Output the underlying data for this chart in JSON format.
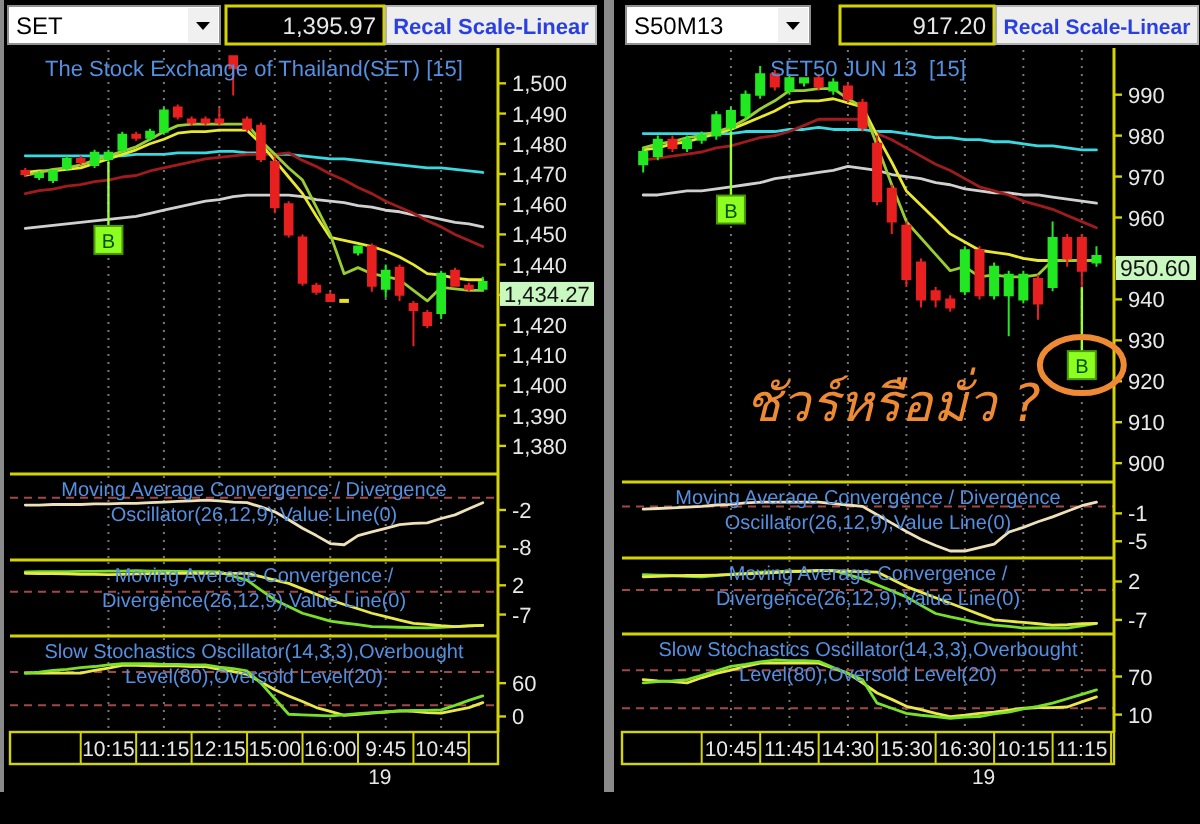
{
  "chart_data": [
    {
      "type": "candlestick",
      "title": "The Stock Exchange of Thailand(SET) [15]",
      "categories": [
        null,
        null,
        null,
        null,
        null,
        null,
        "10:15",
        null,
        null,
        null,
        "11:15",
        null,
        null,
        null,
        "12:15",
        null,
        null,
        null,
        "15:00",
        null,
        null,
        null,
        "16:00",
        null,
        null,
        null,
        "9:45",
        null,
        null,
        null,
        "10:45",
        null,
        null,
        null
      ],
      "ohlc": [
        [
          1471,
          1472,
          1469,
          1470
        ],
        [
          1469,
          1471,
          1468,
          1470
        ],
        [
          1468,
          1471,
          1467,
          1471
        ],
        [
          1472,
          1476,
          1471,
          1475
        ],
        [
          1475,
          1476,
          1473,
          1474
        ],
        [
          1473,
          1478,
          1472,
          1477
        ],
        [
          1475,
          1478,
          1474,
          1477
        ],
        [
          1478,
          1484,
          1477,
          1483
        ],
        [
          1483,
          1484,
          1481,
          1482
        ],
        [
          1482,
          1485,
          1481,
          1484
        ],
        [
          1484,
          1492,
          1483,
          1491
        ],
        [
          1492,
          1493,
          1488,
          1489
        ],
        [
          1488,
          1489,
          1486,
          1487
        ],
        [
          1488,
          1489,
          1486,
          1487
        ],
        [
          1488,
          1492,
          1486,
          1487
        ],
        [
          1509,
          1509,
          1496,
          1505
        ],
        [
          1488,
          1489,
          1484,
          1485
        ],
        [
          1486,
          1487,
          1474,
          1475
        ],
        [
          1474,
          1476,
          1457,
          1459
        ],
        [
          1460,
          1461,
          1449,
          1450
        ],
        [
          1449,
          1450,
          1433,
          1434
        ],
        [
          1433,
          1434,
          1430,
          1431
        ],
        [
          1430,
          1431,
          1428,
          1428
        ],
        [
          1428,
          1428,
          1428,
          1428
        ],
        [
          1444,
          1446,
          1443,
          1446
        ],
        [
          1446,
          1447,
          1431,
          1433
        ],
        [
          1432,
          1440,
          1429,
          1438
        ],
        [
          1439,
          1440,
          1428,
          1430
        ],
        [
          1427,
          1428,
          1413,
          1425
        ],
        [
          1424,
          1425,
          1419,
          1420
        ],
        [
          1424,
          1438,
          1422,
          1437
        ],
        [
          1438,
          1439,
          1433,
          1433
        ],
        [
          1433,
          1434,
          1431,
          1432
        ],
        [
          1432,
          1436,
          1431,
          1434.27
        ]
      ],
      "colors": [
        "#e82020",
        "#22e822",
        "#22e822",
        "#22e822",
        "#e82020",
        "#22e822",
        "#22e822",
        "#22e822",
        "#e82020",
        "#22e822",
        "#22e822",
        "#e82020",
        "#e82020",
        "#e82020",
        "#e82020",
        "#e82020",
        "#e82020",
        "#e82020",
        "#e82020",
        "#e82020",
        "#e82020",
        "#e82020",
        "#e82020",
        "#e8e020",
        "#22e822",
        "#e82020",
        "#22e822",
        "#e82020",
        "#e82020",
        "#e82020",
        "#22e822",
        "#e82020",
        "#e82020",
        "#22e822"
      ],
      "series": [
        {
          "type": "line",
          "color": "#3ad8e0",
          "values": [
            1476,
            1476,
            1476,
            1476,
            1476,
            1476,
            1476,
            1476,
            1476.5,
            1476.5,
            1476.5,
            1477,
            1477,
            1477,
            1477.5,
            1477.5,
            1477,
            1477,
            1476.5,
            1476.5,
            1476,
            1475.5,
            1475,
            1475,
            1474.5,
            1474,
            1473.5,
            1473,
            1472.5,
            1472,
            1472,
            1471.5,
            1471,
            1470.5
          ]
        },
        {
          "type": "line",
          "color": "#d0d0d0",
          "values": [
            1452,
            1452.5,
            1453,
            1453.5,
            1454,
            1454.5,
            1455,
            1455.5,
            1456,
            1457,
            1458,
            1459,
            1460,
            1461,
            1461.5,
            1462.5,
            1463,
            1463,
            1463,
            1463,
            1462.5,
            1461.5,
            1461,
            1460.5,
            1459.5,
            1459,
            1458,
            1457.5,
            1456.5,
            1456,
            1455,
            1454,
            1453.5,
            1452.5
          ]
        },
        {
          "type": "line",
          "color": "#a01c1c",
          "values": [
            1463.5,
            1464.5,
            1465,
            1466,
            1466.5,
            1467.5,
            1468,
            1469,
            1469.5,
            1471,
            1472,
            1473,
            1474,
            1475,
            1475.5,
            1476,
            1476.5,
            1476.5,
            1476.5,
            1477,
            1474.5,
            1472.5,
            1470,
            1468,
            1465.5,
            1463.5,
            1461,
            1459,
            1457,
            1454.5,
            1452.5,
            1450,
            1448,
            1446
          ]
        },
        {
          "type": "line",
          "color": "#e8e830",
          "values": [
            1470.5,
            1471,
            1471,
            1471.5,
            1472,
            1473.5,
            1475,
            1476.5,
            1478,
            1480,
            1481.5,
            1483.5,
            1484,
            1484,
            1484.5,
            1484.5,
            1484.5,
            1480,
            1474.5,
            1469,
            1463.5,
            1456,
            1449,
            1448,
            1447,
            1446,
            1444.5,
            1442.5,
            1440,
            1437,
            1436.5,
            1435.5,
            1435,
            1435
          ]
        },
        {
          "type": "line",
          "color": "#9acd32",
          "values": [
            1469.5,
            1470.5,
            1471.5,
            1472,
            1473,
            1474.5,
            1476,
            1477.5,
            1479,
            1481.5,
            1484,
            1486,
            1486.5,
            1486.5,
            1486.5,
            1486.5,
            1486.5,
            1481,
            1476.5,
            1472,
            1468,
            1459,
            1450,
            1437,
            1439,
            1437,
            1436,
            1435,
            1431.5,
            1428,
            1432.5,
            1432,
            1431.5,
            1431.5
          ]
        }
      ],
      "ylim": [
        1370.7,
        1511.7
      ],
      "yticks": [
        {
          "value": 1380,
          "label": "1,380"
        },
        {
          "value": 1390,
          "label": "1,390"
        },
        {
          "value": 1400,
          "label": "1,400"
        },
        {
          "value": 1410,
          "label": "1,410"
        },
        {
          "value": 1420,
          "label": "1,420"
        },
        {
          "value": 1430,
          "label": null
        },
        {
          "value": 1440,
          "label": "1,440"
        },
        {
          "value": 1450,
          "label": "1,450"
        },
        {
          "value": 1460,
          "label": "1,460"
        },
        {
          "value": 1470,
          "label": "1,470"
        },
        {
          "value": 1480,
          "label": "1,480"
        },
        {
          "value": 1490,
          "label": "1,490"
        },
        {
          "value": 1500,
          "label": "1,500"
        }
      ],
      "grid": "x",
      "tick_labels": "y",
      "annotations": [
        "SET",
        "1,395.97",
        "Recal Scale-Linear",
        "1,434.27",
        {
          "text": "B",
          "x": "10:15",
          "y": 1474
        }
      ]
    },
    {
      "type": "line",
      "title": "Moving Average Convergence / Divergence Oscillator(26,12,9),Value Line(0)",
      "categories": [
        null,
        null,
        null,
        null,
        null,
        null,
        "10:15",
        null,
        null,
        null,
        "11:15",
        null,
        null,
        null,
        "12:15",
        null,
        null,
        null,
        "15:00",
        null,
        null,
        null,
        "16:00",
        null,
        null,
        null,
        "9:45",
        null,
        null,
        null,
        "10:45",
        null,
        null,
        null
      ],
      "series": [
        {
          "color": "#eee0b8",
          "values": [
            -1.2,
            -1.2,
            -1.1,
            -1.1,
            -1.1,
            -1,
            -1,
            -0.9,
            -0.9,
            -0.8,
            -0.7,
            -0.6,
            -0.5,
            -0.4,
            -0.5,
            -0.7,
            -0.8,
            -1.5,
            -2.3,
            -3.6,
            -5,
            -6.2,
            -7.5,
            -7.7,
            -6.2,
            -5.6,
            -5,
            -4.4,
            -4.2,
            -4.1,
            -3.4,
            -2.8,
            -1.8,
            -0.8
          ]
        }
      ],
      "ylim": [
        -10.2,
        3.9
      ],
      "yticks": [
        -2,
        -8
      ],
      "grid": "x",
      "tick_labels": "y",
      "ref_lines": [
        {
          "axis": "y",
          "value": 0,
          "color": "#a04848",
          "line_style": "dashed"
        }
      ]
    },
    {
      "type": "line",
      "title": "Moving Average Convergence / Divergence(26,12,9),Value Line(0)",
      "categories": [
        null,
        null,
        null,
        null,
        null,
        null,
        "10:15",
        null,
        null,
        null,
        "11:15",
        null,
        null,
        null,
        "12:15",
        null,
        null,
        null,
        "15:00",
        null,
        null,
        null,
        "16:00",
        null,
        null,
        null,
        "9:45",
        null,
        null,
        null,
        "10:45",
        null,
        null,
        null
      ],
      "series": [
        {
          "color": "#78e028",
          "values": [
            6.1,
            6.2,
            6.2,
            6.2,
            6.3,
            6.3,
            6.4,
            6.4,
            6.5,
            6.4,
            6.4,
            6.3,
            6.2,
            6.2,
            6.1,
            4.8,
            3.6,
            0.5,
            -2.5,
            -4.5,
            -6.6,
            -7.8,
            -9,
            -9.6,
            -10.1,
            -10.7,
            -10.8,
            -10.9,
            -11,
            -11.1,
            -10.9,
            -10.7,
            -10.5,
            -10.3
          ]
        },
        {
          "color": "#e8e848",
          "values": [
            5.7,
            5.6,
            5.6,
            5.5,
            5.4,
            5.4,
            5.3,
            5.4,
            5.5,
            5.6,
            5.7,
            5.7,
            5.7,
            5.7,
            5.7,
            5.7,
            5.7,
            4.7,
            3.6,
            2.6,
            0.9,
            -0.8,
            -2.5,
            -3.9,
            -5.2,
            -6.6,
            -7.6,
            -8.7,
            -9.7,
            -10,
            -10.4,
            -10.7,
            -10.5,
            -10.3
          ]
        }
      ],
      "ylim": [
        -13.6,
        9.8
      ],
      "yticks": [
        2,
        -7
      ],
      "grid": "x",
      "tick_labels": "y",
      "ref_lines": [
        {
          "axis": "y",
          "value": 0,
          "color": "#a04848",
          "line_style": "dashed"
        }
      ]
    },
    {
      "type": "line",
      "title": "Slow Stochastics Oscillator(14,3,3),Overbought Level(80),Oversold Level(20)",
      "categories": [
        null,
        null,
        null,
        null,
        null,
        null,
        "10:15",
        null,
        null,
        null,
        "11:15",
        null,
        null,
        null,
        "12:15",
        null,
        null,
        null,
        "15:00",
        null,
        null,
        null,
        "16:00",
        null,
        null,
        null,
        "9:45",
        null,
        null,
        null,
        "10:45",
        null,
        null,
        null
      ],
      "series": [
        {
          "color": "#e8e848",
          "values": [
            78,
            78,
            78,
            78,
            78,
            83,
            87,
            92,
            92,
            91,
            91,
            91,
            90,
            90,
            85,
            81,
            76,
            62,
            48,
            37,
            27,
            16,
            9,
            2,
            4,
            6,
            8,
            10,
            9,
            7,
            6,
            11,
            16,
            25
          ]
        },
        {
          "color": "#78e028",
          "values": [
            78,
            80,
            83,
            85,
            88,
            90,
            93,
            95,
            95,
            95,
            94,
            94,
            93,
            93,
            89,
            86,
            82,
            60,
            32,
            4,
            3,
            2,
            1,
            3,
            5,
            7,
            8,
            10,
            11,
            11,
            12,
            20,
            29,
            37
          ]
        }
      ],
      "ylim": [
        -28,
        145
      ],
      "yticks": [
        60,
        0
      ],
      "grid": "x",
      "ref_lines": [
        {
          "axis": "y",
          "value": 80,
          "color": "#a04848",
          "line_style": "dashed"
        },
        {
          "axis": "y",
          "value": 20,
          "color": "#a04848",
          "line_style": "dashed"
        }
      ],
      "annotations": [
        "19"
      ]
    },
    {
      "type": "candlestick",
      "title": "SET50 JUN 13  [15]",
      "categories": [
        null,
        null,
        null,
        null,
        null,
        null,
        "10:45",
        null,
        null,
        null,
        "11:45",
        null,
        null,
        null,
        "14:30",
        null,
        null,
        null,
        "15:30",
        null,
        null,
        null,
        "16:30",
        null,
        null,
        null,
        "10:15",
        null,
        null,
        null,
        "11:15",
        null
      ],
      "ohlc": [
        [
          973,
          977,
          971,
          976
        ],
        [
          975,
          980,
          974,
          979
        ],
        [
          979,
          980,
          976,
          977
        ],
        [
          977,
          980,
          976,
          979
        ],
        [
          979,
          981,
          978,
          980
        ],
        [
          980,
          986,
          979,
          985
        ],
        [
          982,
          987,
          981,
          986
        ],
        [
          985,
          991,
          984,
          990
        ],
        [
          990,
          997,
          989,
          995
        ],
        [
          995,
          996,
          991,
          992
        ],
        [
          991,
          995,
          990,
          994
        ],
        [
          993,
          994,
          992,
          994
        ],
        [
          994,
          995,
          991,
          992
        ],
        [
          991,
          994,
          990,
          993
        ],
        [
          992,
          993,
          988,
          989
        ],
        [
          988,
          989,
          981,
          982
        ],
        [
          978,
          980,
          963,
          964
        ],
        [
          967,
          968,
          956,
          959
        ],
        [
          958,
          959,
          943,
          945
        ],
        [
          949,
          950,
          938,
          940
        ],
        [
          942,
          943,
          938,
          940
        ],
        [
          940,
          941,
          937,
          938
        ],
        [
          942,
          953,
          941,
          952
        ],
        [
          952,
          953,
          940,
          941
        ],
        [
          941,
          949,
          940,
          948
        ],
        [
          941,
          947,
          931,
          946
        ],
        [
          940,
          947,
          939,
          946
        ],
        [
          945,
          946,
          935,
          939
        ],
        [
          943,
          959,
          942,
          955
        ],
        [
          955,
          956,
          948,
          950
        ],
        [
          955,
          956,
          943,
          947
        ],
        [
          949,
          953,
          948,
          950.6
        ]
      ],
      "colors": [
        "#22e822",
        "#22e822",
        "#e82020",
        "#22e822",
        "#22e822",
        "#22e822",
        "#22e822",
        "#22e822",
        "#22e822",
        "#e82020",
        "#22e822",
        "#22e822",
        "#e82020",
        "#22e822",
        "#e82020",
        "#e82020",
        "#e82020",
        "#e82020",
        "#e82020",
        "#e82020",
        "#e82020",
        "#e82020",
        "#22e822",
        "#e82020",
        "#22e822",
        "#22e822",
        "#22e822",
        "#e82020",
        "#22e822",
        "#e82020",
        "#e82020",
        "#22e822"
      ],
      "series": [
        {
          "type": "line",
          "color": "#3ad8e0",
          "values": [
            980.5,
            980.5,
            980.5,
            980.5,
            980.5,
            980.5,
            980.5,
            981,
            981,
            981,
            981.5,
            981.5,
            982,
            981.5,
            981.5,
            981.5,
            981,
            981,
            980.5,
            980,
            979.5,
            979.5,
            979,
            979,
            978.5,
            978.5,
            978,
            977.5,
            977.5,
            977,
            976.5,
            976.5
          ]
        },
        {
          "type": "line",
          "color": "#d0d0d0",
          "values": [
            965.5,
            965.5,
            966,
            966.5,
            966.5,
            967,
            967.5,
            968,
            968.5,
            969.5,
            970,
            970.5,
            971,
            971.5,
            972.5,
            972,
            971.5,
            970.5,
            970,
            969.5,
            968.5,
            968,
            967,
            966.5,
            966,
            966,
            965.5,
            965.5,
            965,
            964.5,
            964,
            963.5
          ]
        },
        {
          "type": "line",
          "color": "#a01c1c",
          "values": [
            974,
            974.5,
            975,
            975.5,
            976,
            977,
            977.5,
            978.5,
            979.5,
            980,
            981,
            982.5,
            984,
            984,
            984,
            984,
            980.5,
            979,
            977,
            975,
            973,
            971.5,
            969.5,
            967.5,
            966.5,
            965.5,
            964,
            963,
            962,
            960.5,
            959,
            957.5
          ]
        },
        {
          "type": "line",
          "color": "#e8e830",
          "values": [
            976.5,
            977,
            978,
            978.5,
            979.5,
            980.5,
            981.5,
            983,
            984.5,
            986,
            988,
            988.5,
            988.5,
            989,
            988,
            987,
            980,
            973.5,
            966.5,
            963,
            959.5,
            956,
            954,
            952,
            951.5,
            951,
            950,
            949.5,
            949.5,
            949.5,
            949.5,
            949.5
          ]
        },
        {
          "type": "line",
          "color": "#9acd32",
          "values": [
            977,
            978,
            978.5,
            979.5,
            980,
            981,
            982,
            984,
            986.5,
            988.5,
            991,
            991,
            991.5,
            991.5,
            989,
            987,
            977.5,
            968,
            959,
            955,
            951,
            947,
            948,
            945.5,
            946,
            945.5,
            945.5,
            946,
            949.5,
            949.5,
            949.5,
            949.5
          ]
        }
      ],
      "ylim": [
        895.4,
        1001.4
      ],
      "yticks": [
        900,
        910,
        920,
        930,
        940,
        {
          "value": 950,
          "label": null
        },
        960,
        970,
        980,
        990
      ],
      "grid": "x",
      "tick_labels": "y",
      "annotations": [
        "S50M13",
        "917.20",
        "Recal Scale-Linear",
        "950.60",
        "ชัวร์หรือมั่ว ?",
        {
          "text": "B",
          "x": "10:45",
          "y": 981
        },
        {
          "text": "B",
          "x": "11:15",
          "y": 943
        }
      ]
    },
    {
      "type": "line",
      "title": "Moving Average Convergence / Divergence Oscillator(26,12,9),Value Line(0)",
      "categories": [
        null,
        null,
        null,
        null,
        null,
        null,
        "10:45",
        null,
        null,
        null,
        "11:45",
        null,
        null,
        null,
        "14:30",
        null,
        null,
        null,
        "15:30",
        null,
        null,
        null,
        "16:30",
        null,
        null,
        null,
        "10:15",
        null,
        null,
        null,
        "11:15",
        null
      ],
      "series": [
        {
          "color": "#eee0b8",
          "values": [
            -0.4,
            -0.3,
            -0.2,
            -0.1,
            0,
            0.2,
            0.3,
            0.5,
            0.6,
            0.6,
            0.6,
            0.6,
            0.6,
            0.4,
            0.2,
            0,
            -1.2,
            -2.4,
            -3.6,
            -4.7,
            -5.6,
            -6.4,
            -6.4,
            -5.9,
            -5.4,
            -3.7,
            -3,
            -2.2,
            -1.5,
            -0.7,
            0.1,
            0.6
          ]
        }
      ],
      "ylim": [
        -7.4,
        3.5
      ],
      "yticks": [
        -1,
        -5
      ],
      "grid": "x",
      "tick_labels": "y",
      "ref_lines": [
        {
          "axis": "y",
          "value": 0,
          "color": "#a04848",
          "line_style": "dashed"
        }
      ]
    },
    {
      "type": "line",
      "title": "Moving Average Convergence / Divergence(26,12,9),Value Line(0)",
      "categories": [
        null,
        null,
        null,
        null,
        null,
        null,
        "10:45",
        null,
        null,
        null,
        "11:45",
        null,
        null,
        null,
        "14:30",
        null,
        null,
        null,
        "15:30",
        null,
        null,
        null,
        "16:30",
        null,
        null,
        null,
        "10:15",
        null,
        null,
        null,
        "11:15",
        null
      ],
      "series": [
        {
          "color": "#78e028",
          "values": [
            3.6,
            3.5,
            3.4,
            3.2,
            3.1,
            3.4,
            3.7,
            3.9,
            4.2,
            4.3,
            4.4,
            4.4,
            4.5,
            4.6,
            3.6,
            2.6,
            1.2,
            -0.2,
            -1.6,
            -3.6,
            -5.5,
            -6.3,
            -7,
            -7.8,
            -8.2,
            -8.5,
            -8.9,
            -8.9,
            -8.9,
            -8.9,
            -8.4,
            -7.8
          ]
        },
        {
          "color": "#e8e848",
          "values": [
            3.1,
            3.2,
            3.3,
            3.4,
            3.4,
            3.5,
            3.6,
            3.8,
            3.9,
            4.1,
            4.3,
            4.4,
            4.6,
            4.5,
            4.4,
            4.3,
            4.2,
            2.5,
            0.8,
            -0.5,
            -1.8,
            -3.1,
            -4.4,
            -5.7,
            -7,
            -7.3,
            -7.6,
            -7.9,
            -8.2,
            -8.1,
            -7.9,
            -7.8
          ]
        }
      ],
      "ylim": [
        -10.3,
        7.5
      ],
      "yticks": [
        2,
        -7
      ],
      "grid": "x",
      "tick_labels": "y",
      "ref_lines": [
        {
          "axis": "y",
          "value": 0,
          "color": "#a04848",
          "line_style": "dashed"
        }
      ]
    },
    {
      "type": "line",
      "title": "Slow Stochastics Oscillator(14,3,3),Overbought Level(80),Oversold Level(20)",
      "categories": [
        null,
        null,
        null,
        null,
        null,
        null,
        "10:45",
        null,
        null,
        null,
        "11:45",
        null,
        null,
        null,
        "14:30",
        null,
        null,
        null,
        "15:30",
        null,
        null,
        null,
        "16:30",
        null,
        null,
        null,
        "10:15",
        null,
        null,
        null,
        "11:15",
        null
      ],
      "series": [
        {
          "color": "#e8e848",
          "values": [
            65,
            63,
            62,
            60,
            68,
            75,
            80,
            86,
            91,
            91,
            91,
            91,
            91,
            83,
            75,
            60,
            44,
            34,
            23,
            18,
            12,
            7,
            9,
            12,
            14,
            17,
            20,
            21,
            21,
            22,
            30,
            38
          ]
        },
        {
          "color": "#78e028",
          "values": [
            60,
            62,
            63,
            65,
            72,
            79,
            86,
            89,
            93,
            96,
            95,
            95,
            94,
            84,
            75,
            65,
            28,
            20,
            12,
            9,
            7,
            4,
            6,
            7,
            11,
            14,
            19,
            23,
            28,
            35,
            42,
            49
          ]
        }
      ],
      "ylim": [
        -17.4,
        137
      ],
      "yticks": [
        70,
        10
      ],
      "grid": "x",
      "ref_lines": [
        {
          "axis": "y",
          "value": 80,
          "color": "#a04848",
          "line_style": "dashed"
        },
        {
          "axis": "y",
          "value": 20,
          "color": "#a04848",
          "line_style": "dashed"
        }
      ],
      "annotations": [
        "19"
      ]
    }
  ]
}
